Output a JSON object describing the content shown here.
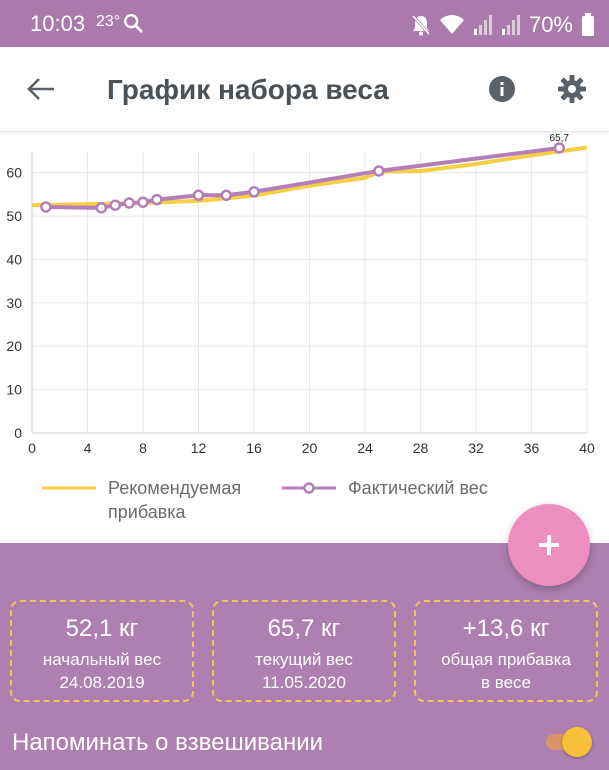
{
  "status_bar": {
    "time": "10:03",
    "temperature": "23°",
    "battery_text": "70%",
    "icons": [
      "search-icon",
      "mute-icon",
      "wifi-icon",
      "signal-icon",
      "signal-icon",
      "battery-icon"
    ]
  },
  "app_bar": {
    "title": "График набора веса",
    "back_icon": "arrow-left-icon",
    "info_icon": "info-icon",
    "settings_icon": "gear-icon"
  },
  "chart_data": {
    "type": "line",
    "xlim": [
      0,
      40
    ],
    "ylim": [
      0,
      65
    ],
    "x_ticks": [
      0,
      4,
      8,
      12,
      16,
      20,
      24,
      28,
      32,
      36,
      40
    ],
    "y_ticks": [
      0,
      10,
      20,
      30,
      40,
      50,
      60
    ],
    "grid": true,
    "legend_position": "bottom",
    "series": [
      {
        "name": "Рекомендуемая прибавка",
        "color": "#f5cf45",
        "markers": false,
        "points": [
          [
            0,
            52.5
          ],
          [
            8,
            53.0
          ],
          [
            12,
            53.5
          ],
          [
            16,
            54.7
          ],
          [
            20,
            57.0
          ],
          [
            24,
            58.8
          ],
          [
            25,
            60.2
          ],
          [
            28,
            60.4
          ],
          [
            32,
            62.0
          ],
          [
            36,
            64.0
          ],
          [
            40,
            65.8
          ]
        ]
      },
      {
        "name": "Фактический вес",
        "color": "#b47fb7",
        "markers": true,
        "points": [
          [
            1,
            52.1
          ],
          [
            5,
            51.9
          ],
          [
            6,
            52.5
          ],
          [
            7,
            53.0
          ],
          [
            8,
            53.2
          ],
          [
            9,
            53.8
          ],
          [
            12,
            54.8
          ],
          [
            14,
            54.8
          ],
          [
            16,
            55.6
          ],
          [
            25,
            60.4
          ],
          [
            38,
            65.7
          ]
        ]
      }
    ],
    "annotation": "65,7"
  },
  "legend": {
    "recommended": {
      "line1": "Рекомендуемая",
      "line2": "прибавка",
      "color": "#f5cf45"
    },
    "actual": {
      "label": "Фактический вес",
      "color": "#b47fb7"
    }
  },
  "fab": {
    "icon": "plus-icon",
    "label": "+"
  },
  "stats": [
    {
      "value": "52,1 кг",
      "label": "начальный вес",
      "sub": "24.08.2019"
    },
    {
      "value": "65,7 кг",
      "label": "текущий вес",
      "sub": "11.05.2020"
    },
    {
      "value": "+13,6 кг",
      "label": "общая прибавка",
      "sub": "в весе"
    }
  ],
  "reminder": {
    "label": "Напоминать о взвешивании",
    "enabled": true
  }
}
